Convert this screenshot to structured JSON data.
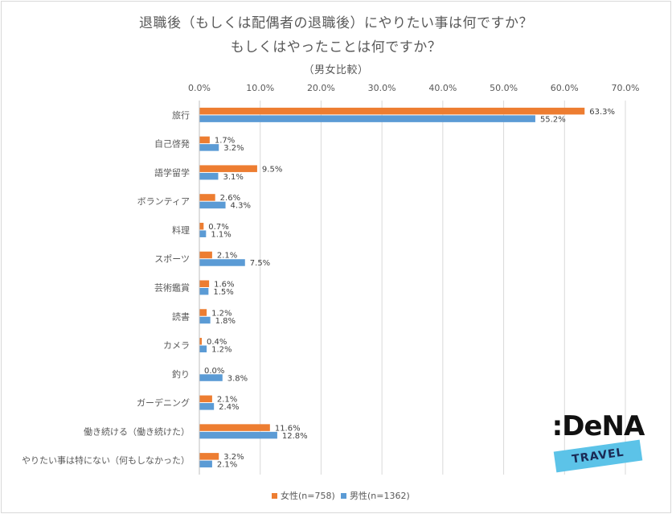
{
  "chart_data": {
    "type": "bar",
    "orientation": "horizontal",
    "title_line1": "退職後（もしくは配偶者の退職後）にやりたい事は何ですか？",
    "title_line2": "もしくはやったことは何ですか？",
    "subtitle": "（男女比較）",
    "xlim": [
      0,
      70
    ],
    "x_ticks": [
      "0.0%",
      "10.0%",
      "20.0%",
      "30.0%",
      "40.0%",
      "50.0%",
      "60.0%",
      "70.0%"
    ],
    "categories": [
      "旅行",
      "自己啓発",
      "語学留学",
      "ボランティア",
      "料理",
      "スポーツ",
      "芸術鑑賞",
      "読書",
      "カメラ",
      "釣り",
      "ガーデニング",
      "働き続ける（働き続けた）",
      "やりたい事は特にない（何もしなかった）"
    ],
    "series": [
      {
        "name": "女性(n=758)",
        "color": "#ed7d31",
        "values": [
          63.3,
          1.7,
          9.5,
          2.6,
          0.7,
          2.1,
          1.6,
          1.2,
          0.4,
          0.0,
          2.1,
          11.6,
          3.2
        ],
        "labels": [
          "63.3%",
          "1.7%",
          "9.5%",
          "2.6%",
          "0.7%",
          "2.1%",
          "1.6%",
          "1.2%",
          "0.4%",
          "0.0%",
          "2.1%",
          "11.6%",
          "3.2%"
        ]
      },
      {
        "name": "男性(n=1362)",
        "color": "#5b9bd5",
        "values": [
          55.2,
          3.2,
          3.1,
          4.3,
          1.1,
          7.5,
          1.5,
          1.8,
          1.2,
          3.8,
          2.4,
          12.8,
          2.1
        ],
        "labels": [
          "55.2%",
          "3.2%",
          "3.1%",
          "4.3%",
          "1.1%",
          "7.5%",
          "1.5%",
          "1.8%",
          "1.2%",
          "3.8%",
          "2.4%",
          "12.8%",
          "2.1%"
        ]
      }
    ],
    "legend_position": "bottom"
  },
  "logo": {
    "word": ":DeNA",
    "band": "TRAVEL"
  }
}
